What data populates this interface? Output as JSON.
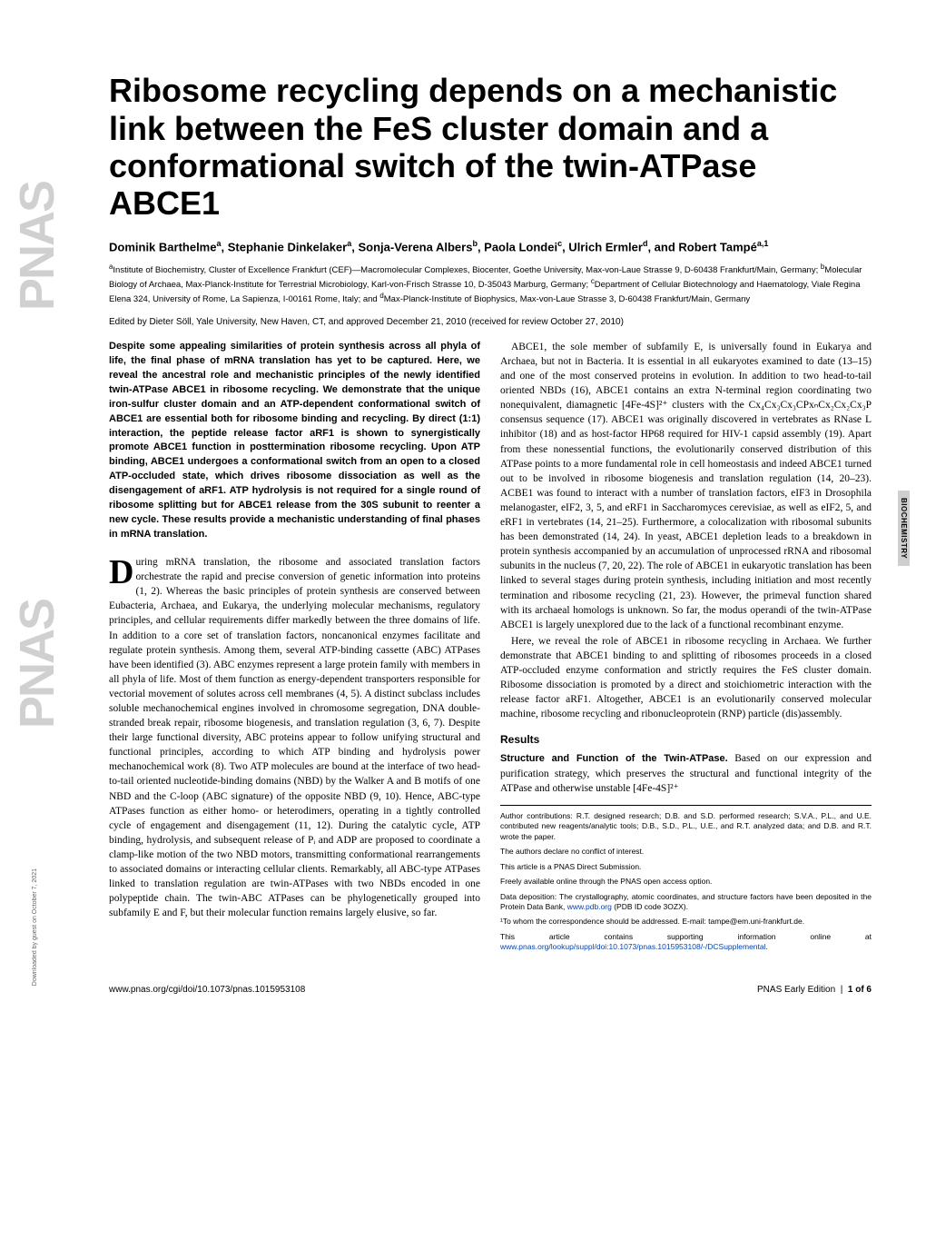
{
  "sidebar_text": "PNAS",
  "title": "Ribosome recycling depends on a mechanistic link between the FeS cluster domain and a conformational switch of the twin-ATPase ABCE1",
  "authors_html": "Dominik Barthelme<sup>a</sup>, Stephanie Dinkelaker<sup>a</sup>, Sonja-Verena Albers<sup>b</sup>, Paola Londei<sup>c</sup>, Ulrich Ermler<sup>d</sup>, and Robert Tampé<sup>a,1</sup>",
  "affiliations": "<sup>a</sup>Institute of Biochemistry, Cluster of Excellence Frankfurt (CEF)—Macromolecular Complexes, Biocenter, Goethe University, Max-von-Laue Strasse 9, D-60438 Frankfurt/Main, Germany; <sup>b</sup>Molecular Biology of Archaea, Max-Planck-Institute for Terrestrial Microbiology, Karl-von-Frisch Strasse 10, D-35043 Marburg, Germany; <sup>c</sup>Department of Cellular Biotechnology and Haematology, Viale Regina Elena 324, University of Rome, La Sapienza, I-00161 Rome, Italy; and <sup>d</sup>Max-Planck-Institute of Biophysics, Max-von-Laue Strasse 3, D-60438 Frankfurt/Main, Germany",
  "edited": "Edited by Dieter Söll, Yale University, New Haven, CT, and approved December 21, 2010 (received for review October 27, 2010)",
  "abstract": "Despite some appealing similarities of protein synthesis across all phyla of life, the final phase of mRNA translation has yet to be captured. Here, we reveal the ancestral role and mechanistic principles of the newly identified twin-ATPase ABCE1 in ribosome recycling. We demonstrate that the unique iron-sulfur cluster domain and an ATP-dependent conformational switch of ABCE1 are essential both for ribosome binding and recycling. By direct (1:1) interaction, the peptide release factor aRF1 is shown to synergistically promote ABCE1 function in posttermination ribosome recycling. Upon ATP binding, ABCE1 undergoes a conformational switch from an open to a closed ATP-occluded state, which drives ribosome dissociation as well as the disengagement of aRF1. ATP hydrolysis is not required for a single round of ribosome splitting but for ABCE1 release from the 30S subunit to reenter a new cycle. These results provide a mechanistic understanding of final phases in mRNA translation.",
  "body_left_p1": "During mRNA translation, the ribosome and associated translation factors orchestrate the rapid and precise conversion of genetic information into proteins (1, 2). Whereas the basic principles of protein synthesis are conserved between Eubacteria, Archaea, and Eukarya, the underlying molecular mechanisms, regulatory principles, and cellular requirements differ markedly between the three domains of life. In addition to a core set of translation factors, noncanonical enzymes facilitate and regulate protein synthesis. Among them, several ATP-binding cassette (ABC) ATPases have been identified (3). ABC enzymes represent a large protein family with members in all phyla of life. Most of them function as energy-dependent transporters responsible for vectorial movement of solutes across cell membranes (4, 5). A distinct subclass includes soluble mechanochemical engines involved in chromosome segregation, DNA double-stranded break repair, ribosome biogenesis, and translation regulation (3, 6, 7). Despite their large functional diversity, ABC proteins appear to follow unifying structural and functional principles, according to which ATP binding and hydrolysis power mechanochemical work (8). Two ATP molecules are bound at the interface of two head-to-tail oriented nucleotide-binding domains (NBD) by the Walker A and B motifs of one NBD and the C-loop (ABC signature) of the opposite NBD (9, 10). Hence, ABC-type ATPases function as either homo- or heterodimers, operating in a tightly controlled cycle of engagement and disengagement (11, 12). During the catalytic cycle, ATP binding, hydrolysis, and subsequent release of Pᵢ and ADP are proposed to coordinate a clamp-like motion of the two NBD motors, transmitting conformational rearrangements to associated domains or interacting cellular clients. Remarkably, all ABC-type ATPases linked to translation regulation are twin-ATPases with two NBDs encoded in one polypeptide chain. The twin-ABC ATPases can be phylogenetically grouped into subfamily E and F, but their molecular function remains largely elusive, so far.",
  "body_right_p1": "ABCE1, the sole member of subfamily E, is universally found in Eukarya and Archaea, but not in Bacteria. It is essential in all eukaryotes examined to date (13–15) and one of the most conserved proteins in evolution. In addition to two head-to-tail oriented NBDs (16), ABCE1 contains an extra N-terminal region coordinating two nonequivalent, diamagnetic [4Fe-4S]²⁺ clusters with the Cx₄Cx₃Cx₃CPxₙCx₂Cx₂Cx₃P consensus sequence (17). ABCE1 was originally discovered in vertebrates as RNase L inhibitor (18) and as host-factor HP68 required for HIV-1 capsid assembly (19). Apart from these nonessential functions, the evolutionarily conserved distribution of this ATPase points to a more fundamental role in cell homeostasis and indeed ABCE1 turned out to be involved in ribosome biogenesis and translation regulation (14, 20–23). ACBE1 was found to interact with a number of translation factors, eIF3 in Drosophila melanogaster, eIF2, 3, 5, and eRF1 in Saccharomyces cerevisiae, as well as eIF2, 5, and eRF1 in vertebrates (14, 21–25). Furthermore, a colocalization with ribosomal subunits has been demonstrated (14, 24). In yeast, ABCE1 depletion leads to a breakdown in protein synthesis accompanied by an accumulation of unprocessed rRNA and ribosomal subunits in the nucleus (7, 20, 22). The role of ABCE1 in eukaryotic translation has been linked to several stages during protein synthesis, including initiation and most recently termination and ribosome recycling (21, 23). However, the primeval function shared with its archaeal homologs is unknown. So far, the modus operandi of the twin-ATPase ABCE1 is largely unexplored due to the lack of a functional recombinant enzyme.",
  "body_right_p2": "Here, we reveal the role of ABCE1 in ribosome recycling in Archaea. We further demonstrate that ABCE1 binding to and splitting of ribosomes proceeds in a closed ATP-occluded enzyme conformation and strictly requires the FeS cluster domain. Ribosome dissociation is promoted by a direct and stoichiometric interaction with the release factor aRF1. Altogether, ABCE1 is an evolutionarily conserved molecular machine, ribosome recycling and ribonucleoprotein (RNP) particle (dis)assembly.",
  "results_head": "Results",
  "results_sub": "Structure and Function of the Twin-ATPase.",
  "results_text": " Based on our expression and purification strategy, which preserves the structural and functional integrity of the ATPase and otherwise unstable [4Fe-4S]²⁺",
  "section_tab": "BIOCHEMISTRY",
  "footnotes": {
    "f1": "Author contributions: R.T. designed research; D.B. and S.D. performed research; S.V.A., P.L., and U.E. contributed new reagents/analytic tools; D.B., S.D., P.L., U.E., and R.T. analyzed data; and D.B. and R.T. wrote the paper.",
    "f2": "The authors declare no conflict of interest.",
    "f3": "This article is a PNAS Direct Submission.",
    "f4": "Freely available online through the PNAS open access option.",
    "f5_a": "Data deposition: The crystallography, atomic coordinates, and structure factors have been deposited in the Protein Data Bank, ",
    "f5_link": "www.pdb.org",
    "f5_b": " (PDB ID code 3OZX).",
    "f6": "¹To whom the correspondence should be addressed. E-mail: tampe@em.uni-frankfurt.de.",
    "f7_a": "This article contains supporting information online at ",
    "f7_link": "www.pnas.org/lookup/suppl/doi:10.1073/pnas.1015953108/-/DCSupplemental",
    "f7_b": "."
  },
  "footer_left": "www.pnas.org/cgi/doi/10.1073/pnas.1015953108",
  "footer_right": "PNAS Early Edition | 1 of 6",
  "download_note": "Downloaded by guest on October 7, 2021"
}
